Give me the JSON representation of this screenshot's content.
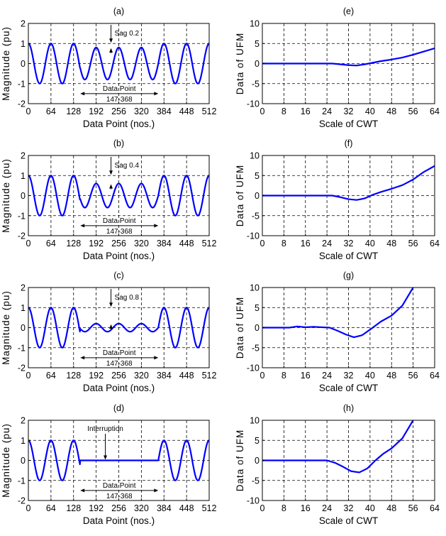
{
  "colors": {
    "line": "#0000ff",
    "axis": "#000000",
    "grid": "#000000"
  },
  "chart_data": [
    {
      "type": "line",
      "title": "(a)",
      "xlabel": "Data Point (nos.)",
      "ylabel": "Magnitude (pu)",
      "xlim": [
        0,
        512
      ],
      "ylim": [
        -2,
        2
      ],
      "xticks": [
        "0",
        "64",
        "128",
        "192",
        "256",
        "320",
        "384",
        "448",
        "512"
      ],
      "yticks": [
        "-2",
        "-1",
        "0",
        "1",
        "2"
      ],
      "grid": true,
      "sag_level": 0.2,
      "sag_range": [
        147,
        368
      ],
      "cycles": 8,
      "annotations": {
        "label": "Sag 0.2",
        "range_label_1": "Data Point",
        "range_label_2": "147-368"
      }
    },
    {
      "type": "line",
      "title": "(b)",
      "xlabel": "Data Point (nos.)",
      "ylabel": "Magnitude (pu)",
      "xlim": [
        0,
        512
      ],
      "ylim": [
        -2,
        2
      ],
      "xticks": [
        "0",
        "64",
        "128",
        "192",
        "256",
        "320",
        "384",
        "448",
        "512"
      ],
      "yticks": [
        "-2",
        "-1",
        "0",
        "1",
        "2"
      ],
      "grid": true,
      "sag_level": 0.4,
      "sag_range": [
        147,
        368
      ],
      "cycles": 8,
      "annotations": {
        "label": "Sag 0.4",
        "range_label_1": "Data Point",
        "range_label_2": "147-368"
      }
    },
    {
      "type": "line",
      "title": "(c)",
      "xlabel": "Data Point (nos.)",
      "ylabel": "Magnitude (pu)",
      "xlim": [
        0,
        512
      ],
      "ylim": [
        -2,
        2
      ],
      "xticks": [
        "0",
        "64",
        "128",
        "192",
        "256",
        "320",
        "384",
        "448",
        "512"
      ],
      "yticks": [
        "-2",
        "-1",
        "0",
        "1",
        "2"
      ],
      "grid": true,
      "sag_level": 0.8,
      "sag_range": [
        147,
        368
      ],
      "cycles": 8,
      "annotations": {
        "label": "Sag 0.8",
        "range_label_1": "Data Point",
        "range_label_2": "147-368"
      }
    },
    {
      "type": "line",
      "title": "(d)",
      "xlabel": "Data Point (nos.)",
      "ylabel": "Magnitude (pu)",
      "xlim": [
        0,
        512
      ],
      "ylim": [
        -2,
        2
      ],
      "xticks": [
        "0",
        "64",
        "128",
        "192",
        "256",
        "320",
        "384",
        "448",
        "512"
      ],
      "yticks": [
        "-2",
        "-1",
        "0",
        "1",
        "2"
      ],
      "grid": true,
      "sag_level": 1.0,
      "sag_range": [
        147,
        368
      ],
      "cycles": 8,
      "annotations": {
        "label": "Interruption",
        "range_label_1": "Data Point",
        "range_label_2": "147-368"
      }
    },
    {
      "type": "line",
      "title": "(e)",
      "xlabel": "Scale of CWT",
      "ylabel": "Data of UFM",
      "xlim": [
        0,
        64
      ],
      "ylim": [
        -10,
        10
      ],
      "xticks": [
        "0",
        "8",
        "16",
        "24",
        "32",
        "40",
        "48",
        "56",
        "64"
      ],
      "yticks": [
        "-10",
        "-5",
        "0",
        "5",
        "10"
      ],
      "grid": true,
      "series": [
        {
          "x": [
            0,
            26,
            29,
            32,
            35,
            38,
            41,
            44,
            48,
            52,
            56,
            60,
            64
          ],
          "y": [
            0,
            0,
            -0.2,
            -0.4,
            -0.5,
            -0.2,
            0.2,
            0.6,
            1.0,
            1.5,
            2.2,
            3.0,
            3.8
          ]
        }
      ]
    },
    {
      "type": "line",
      "title": "(f)",
      "xlabel": "Scale of CWT",
      "ylabel": "Data of UFM",
      "xlim": [
        0,
        64
      ],
      "ylim": [
        -10,
        10
      ],
      "xticks": [
        "0",
        "8",
        "16",
        "24",
        "32",
        "40",
        "48",
        "56",
        "64"
      ],
      "yticks": [
        "-10",
        "-5",
        "0",
        "5",
        "10"
      ],
      "grid": true,
      "series": [
        {
          "x": [
            0,
            26,
            29,
            32,
            35,
            38,
            41,
            44,
            48,
            52,
            56,
            60,
            64
          ],
          "y": [
            0,
            0,
            -0.4,
            -0.9,
            -1.1,
            -0.7,
            0.2,
            0.9,
            1.7,
            2.6,
            4.0,
            5.9,
            7.4
          ]
        }
      ]
    },
    {
      "type": "line",
      "title": "(g)",
      "xlabel": "Scale of CWT",
      "ylabel": "Data of UFM",
      "xlim": [
        0,
        64
      ],
      "ylim": [
        -10,
        10
      ],
      "xticks": [
        "0",
        "8",
        "16",
        "24",
        "32",
        "40",
        "48",
        "56",
        "64"
      ],
      "yticks": [
        "-10",
        "-5",
        "0",
        "5",
        "10"
      ],
      "grid": true,
      "series": [
        {
          "x": [
            0,
            10,
            13,
            16,
            19,
            22,
            25,
            28,
            31,
            34,
            37,
            40,
            44,
            48,
            52,
            56
          ],
          "y": [
            0,
            0,
            0.3,
            0.1,
            0.2,
            0.1,
            0,
            -0.8,
            -1.7,
            -2.4,
            -1.9,
            -0.5,
            1.5,
            3.0,
            5.5,
            10
          ]
        }
      ]
    },
    {
      "type": "line",
      "title": "(h)",
      "xlabel": "Scale of CWT",
      "ylabel": "Data of UFM",
      "xlim": [
        0,
        64
      ],
      "ylim": [
        -10,
        10
      ],
      "xticks": [
        "0",
        "8",
        "16",
        "24",
        "32",
        "40",
        "48",
        "56",
        "64"
      ],
      "yticks": [
        "-10",
        "-5",
        "0",
        "5",
        "10"
      ],
      "grid": true,
      "series": [
        {
          "x": [
            0,
            24,
            27,
            30,
            33,
            36,
            39,
            42,
            45,
            48,
            52,
            56
          ],
          "y": [
            0,
            0,
            -0.6,
            -1.6,
            -2.7,
            -3.0,
            -2.0,
            0,
            1.7,
            3.0,
            5.5,
            10
          ]
        }
      ]
    }
  ]
}
